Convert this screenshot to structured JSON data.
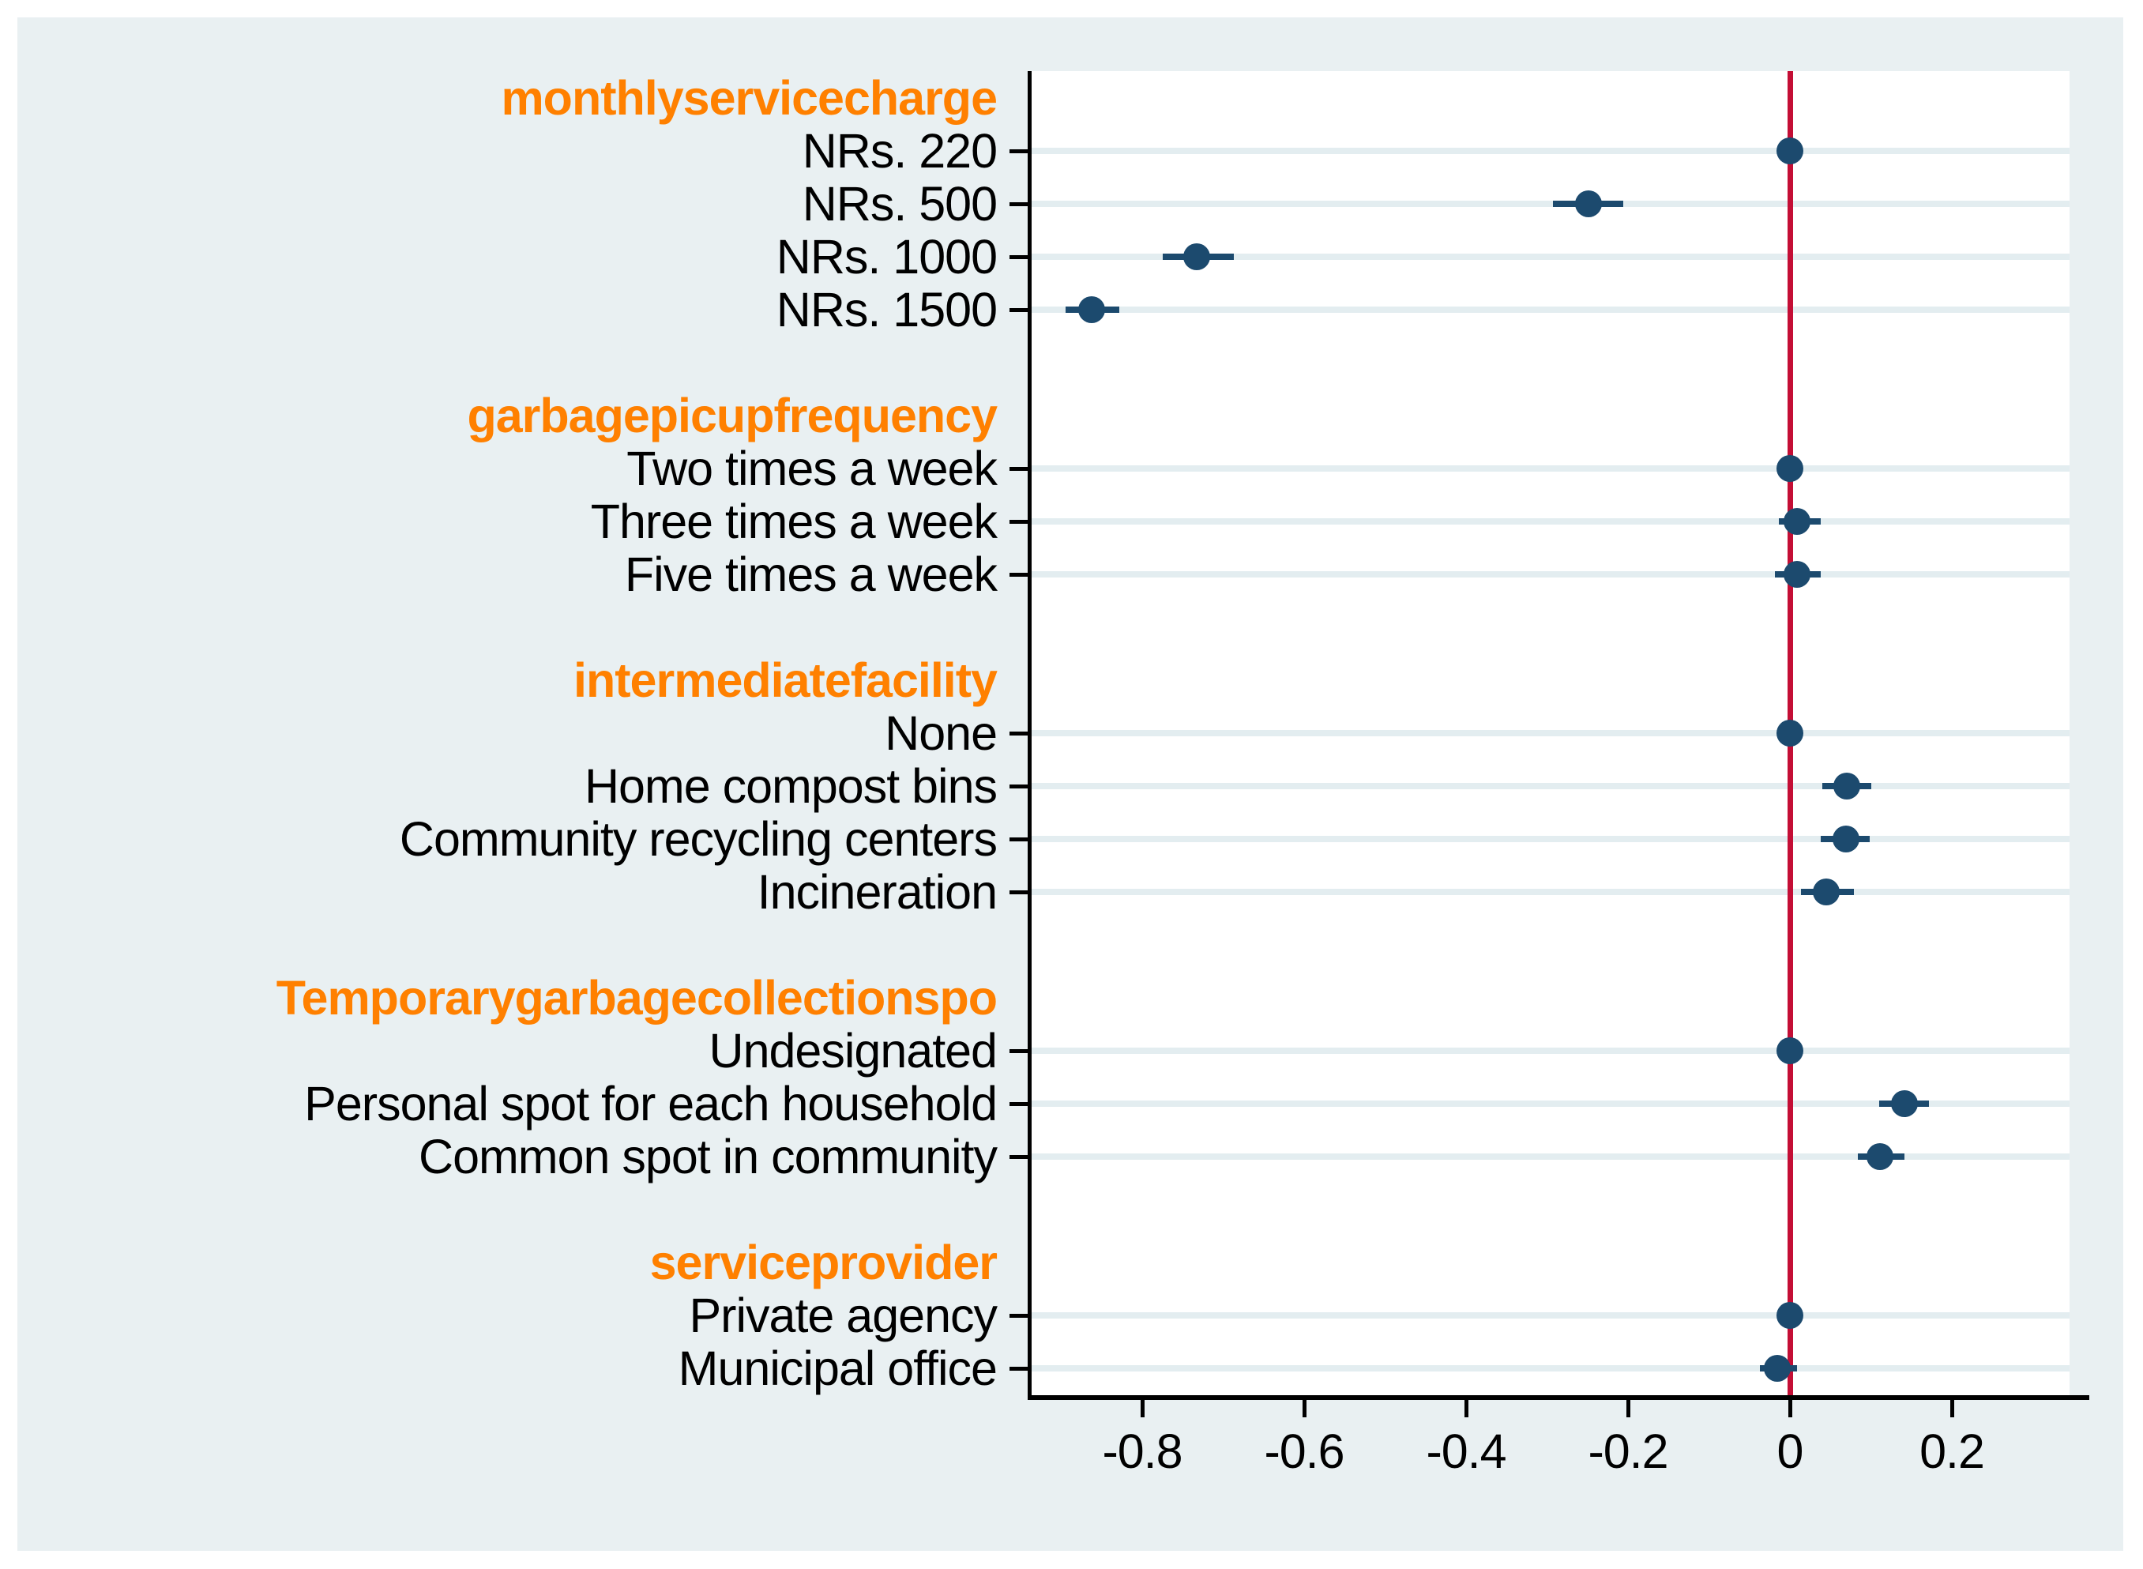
{
  "colors": {
    "page_background": "#ffffff",
    "figure_background": "#e9f0f2",
    "plot_background": "#ffffff",
    "gridline": "#e3edf0",
    "header_text": "#ff8000",
    "label_text": "#000000",
    "marker": "#1c4a6e",
    "zero_line": "#c40e35",
    "axis": "#000000"
  },
  "chart_data": {
    "type": "scatter",
    "variant": "coefficient-dot-whisker-plot",
    "title": "",
    "xlabel": "",
    "ylabel": "",
    "xlim": [
      -0.938,
      0.345
    ],
    "grid": "horizontal-band-per-item-row",
    "legend": "none",
    "zero_line_value": 0,
    "x_ticks": [
      {
        "value": -0.8,
        "label": "-0.8"
      },
      {
        "value": -0.6,
        "label": "-0.6"
      },
      {
        "value": -0.4,
        "label": "-0.4"
      },
      {
        "value": -0.2,
        "label": "-0.2"
      },
      {
        "value": 0,
        "label": "0"
      },
      {
        "value": 0.2,
        "label": "0.2"
      }
    ],
    "groups": [
      {
        "header": "monthlyservicecharge",
        "items": [
          {
            "label": "NRs. 220",
            "value": 0,
            "ci_low": 0,
            "ci_high": 0,
            "reference": true
          },
          {
            "label": "NRs. 500",
            "value": -0.249,
            "ci_low": -0.293,
            "ci_high": -0.206,
            "reference": false
          },
          {
            "label": "NRs. 1000",
            "value": -0.733,
            "ci_low": -0.775,
            "ci_high": -0.687,
            "reference": false
          },
          {
            "label": "NRs. 1500",
            "value": -0.862,
            "ci_low": -0.895,
            "ci_high": -0.828,
            "reference": false
          }
        ]
      },
      {
        "header": "garbagepicupfrequency",
        "items": [
          {
            "label": "Two times a week",
            "value": 0,
            "ci_low": 0,
            "ci_high": 0,
            "reference": true
          },
          {
            "label": "Three times a week",
            "value": 0.009,
            "ci_low": -0.014,
            "ci_high": 0.038,
            "reference": false
          },
          {
            "label": "Five times a week",
            "value": 0.009,
            "ci_low": -0.019,
            "ci_high": 0.038,
            "reference": false
          }
        ]
      },
      {
        "header": "intermediatefacility",
        "items": [
          {
            "label": "None",
            "value": 0,
            "ci_low": 0,
            "ci_high": 0,
            "reference": true
          },
          {
            "label": "Home compost bins",
            "value": 0.07,
            "ci_low": 0.04,
            "ci_high": 0.1,
            "reference": false
          },
          {
            "label": "Community recycling centers",
            "value": 0.069,
            "ci_low": 0.038,
            "ci_high": 0.099,
            "reference": false
          },
          {
            "label": "Incineration",
            "value": 0.045,
            "ci_low": 0.014,
            "ci_high": 0.079,
            "reference": false
          }
        ]
      },
      {
        "header": "Temporarygarbagecollectionspo",
        "items": [
          {
            "label": "Undesignated",
            "value": 0,
            "ci_low": 0,
            "ci_high": 0,
            "reference": true
          },
          {
            "label": "Personal spot for each household",
            "value": 0.141,
            "ci_low": 0.11,
            "ci_high": 0.172,
            "reference": false
          },
          {
            "label": "Common spot in community",
            "value": 0.111,
            "ci_low": 0.084,
            "ci_high": 0.141,
            "reference": false
          }
        ]
      },
      {
        "header": "serviceprovider",
        "items": [
          {
            "label": "Private agency",
            "value": 0,
            "ci_low": 0,
            "ci_high": 0,
            "reference": true
          },
          {
            "label": "Municipal office",
            "value": -0.016,
            "ci_low": -0.037,
            "ci_high": 0.009,
            "reference": false
          }
        ]
      }
    ]
  }
}
